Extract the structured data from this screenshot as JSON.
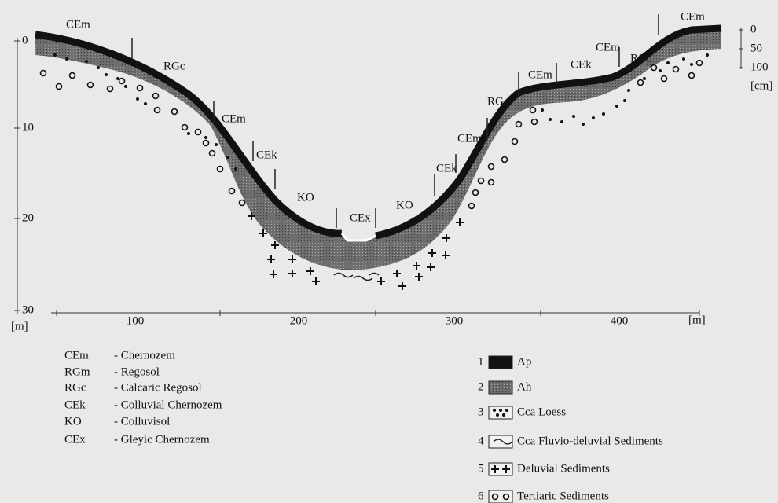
{
  "left_axis": {
    "ticks": [
      "0",
      "10",
      "20",
      "30"
    ],
    "unit": "[m]"
  },
  "bottom_axis": {
    "ticks": [
      "100",
      "200",
      "300",
      "400"
    ],
    "unit": "[m]"
  },
  "right_scale": {
    "ticks": [
      "0",
      "50",
      "100"
    ],
    "unit": "[cm]"
  },
  "profile_labels": [
    "CEm",
    "RGc",
    "CEm",
    "CEk",
    "KO",
    "CEx",
    "KO",
    "CEk",
    "CEm",
    "RGc",
    "CEm",
    "CEk",
    "CEm",
    "RGc",
    "CEm"
  ],
  "soil_legend": [
    {
      "code": "CEm",
      "name": "- Chernozem"
    },
    {
      "code": "RGm",
      "name": "- Regosol"
    },
    {
      "code": "RGc",
      "name": "- Calcaric Regosol"
    },
    {
      "code": "CEk",
      "name": "- Colluvial  Chernozem"
    },
    {
      "code": "KO",
      "name": "- Colluvisol"
    },
    {
      "code": "CEx",
      "name": "- Gleyic Chernozem"
    }
  ],
  "layer_legend": [
    {
      "number": "1",
      "name": "Ap"
    },
    {
      "number": "2",
      "name": "Ah"
    },
    {
      "number": "3",
      "name": "Cca Loess"
    },
    {
      "number": "4",
      "name": "Cca Fluvio-deluvial Sediments"
    },
    {
      "number": "5",
      "name": "Deluvial Sediments"
    },
    {
      "number": "6",
      "name": "Tertiaric Sediments"
    }
  ]
}
